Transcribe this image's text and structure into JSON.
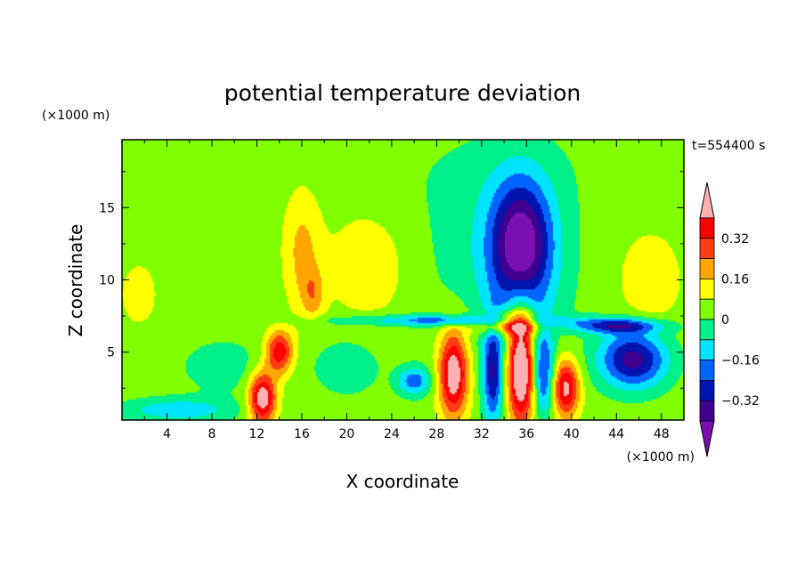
{
  "chart_data": {
    "type": "heatmap",
    "title": "potential temperature deviation",
    "xlabel": "X coordinate",
    "ylabel": "Z coordinate",
    "x_units": "(×1000 m)",
    "y_units": "(×1000 m)",
    "time_label": "t=554400 s",
    "xlim": [
      0,
      50
    ],
    "ylim": [
      0.3,
      19.7
    ],
    "x_ticks": [
      4,
      8,
      12,
      16,
      20,
      24,
      28,
      32,
      36,
      40,
      44,
      48
    ],
    "y_ticks": [
      5,
      10,
      15
    ],
    "colorbar": {
      "levels": [
        -0.4,
        -0.32,
        -0.24,
        -0.16,
        -0.08,
        0,
        0.08,
        0.16,
        0.24,
        0.32,
        0.4
      ],
      "labeled_levels": [
        0.32,
        0.16,
        0,
        -0.16,
        -0.32
      ],
      "labels": [
        "0.32",
        "0.16",
        "0",
        "−0.16",
        "−0.32"
      ],
      "colors": [
        "#7a10b0",
        "#3f0090",
        "#0014b0",
        "#0064ff",
        "#00e4ff",
        "#00f08a",
        "#80ff00",
        "#ffff00",
        "#ffa500",
        "#ff3c14",
        "#ff0000",
        "#ffb0b0"
      ]
    },
    "background_value": 0.04,
    "anomalies": [
      {
        "x": 35.5,
        "z": 12.5,
        "sx": 2.6,
        "sz": 4.2,
        "value": -0.42
      },
      {
        "x": 35.5,
        "z": 11.0,
        "sx": 4.5,
        "sz": 6.5,
        "value": -0.12
      },
      {
        "x": 30.0,
        "z": 12.0,
        "sx": 5.5,
        "sz": 5.0,
        "value": -0.05
      },
      {
        "x": 33.0,
        "z": 17.5,
        "sx": 9.0,
        "sz": 3.5,
        "value": -0.04
      },
      {
        "x": 16.0,
        "z": 12.0,
        "sx": 1.6,
        "sz": 4.0,
        "value": 0.14
      },
      {
        "x": 17.0,
        "z": 9.0,
        "sx": 1.0,
        "sz": 1.8,
        "value": 0.14
      },
      {
        "x": 22.0,
        "z": 11.0,
        "sx": 4.0,
        "sz": 4.0,
        "value": 0.09
      },
      {
        "x": 47.0,
        "z": 10.0,
        "sx": 2.5,
        "sz": 3.0,
        "value": 0.12
      },
      {
        "x": 1.5,
        "z": 9.0,
        "sx": 1.5,
        "sz": 2.0,
        "value": 0.1
      },
      {
        "x": 35.5,
        "z": 4.0,
        "sx": 1.2,
        "sz": 4.0,
        "value": 0.55
      },
      {
        "x": 34.5,
        "z": 7.0,
        "sx": 3.0,
        "sz": 0.7,
        "value": 0.4
      },
      {
        "x": 29.5,
        "z": 3.5,
        "sx": 1.3,
        "sz": 3.0,
        "value": 0.45
      },
      {
        "x": 12.5,
        "z": 1.8,
        "sx": 1.2,
        "sz": 1.8,
        "value": 0.45
      },
      {
        "x": 14.0,
        "z": 5.0,
        "sx": 1.2,
        "sz": 1.5,
        "value": 0.35
      },
      {
        "x": 39.5,
        "z": 2.5,
        "sx": 1.2,
        "sz": 2.0,
        "value": 0.4
      },
      {
        "x": 33.0,
        "z": 3.5,
        "sx": 0.9,
        "sz": 3.5,
        "value": -0.35
      },
      {
        "x": 37.5,
        "z": 3.5,
        "sx": 0.9,
        "sz": 3.0,
        "value": -0.3
      },
      {
        "x": 45.5,
        "z": 4.5,
        "sx": 3.0,
        "sz": 2.0,
        "value": -0.4
      },
      {
        "x": 26.0,
        "z": 3.0,
        "sx": 1.5,
        "sz": 1.0,
        "value": -0.25
      },
      {
        "x": 9.0,
        "z": 4.0,
        "sx": 4.0,
        "sz": 2.0,
        "value": -0.08
      },
      {
        "x": 20.0,
        "z": 4.0,
        "sx": 3.0,
        "sz": 2.0,
        "value": -0.1
      },
      {
        "x": 5.0,
        "z": 1.0,
        "sx": 5.0,
        "sz": 0.8,
        "value": -0.18
      },
      {
        "x": 30.0,
        "z": 7.2,
        "sx": 10.0,
        "sz": 0.4,
        "value": -0.25
      },
      {
        "x": 44.0,
        "z": 6.8,
        "sx": 4.0,
        "sz": 0.5,
        "value": -0.3
      }
    ]
  }
}
